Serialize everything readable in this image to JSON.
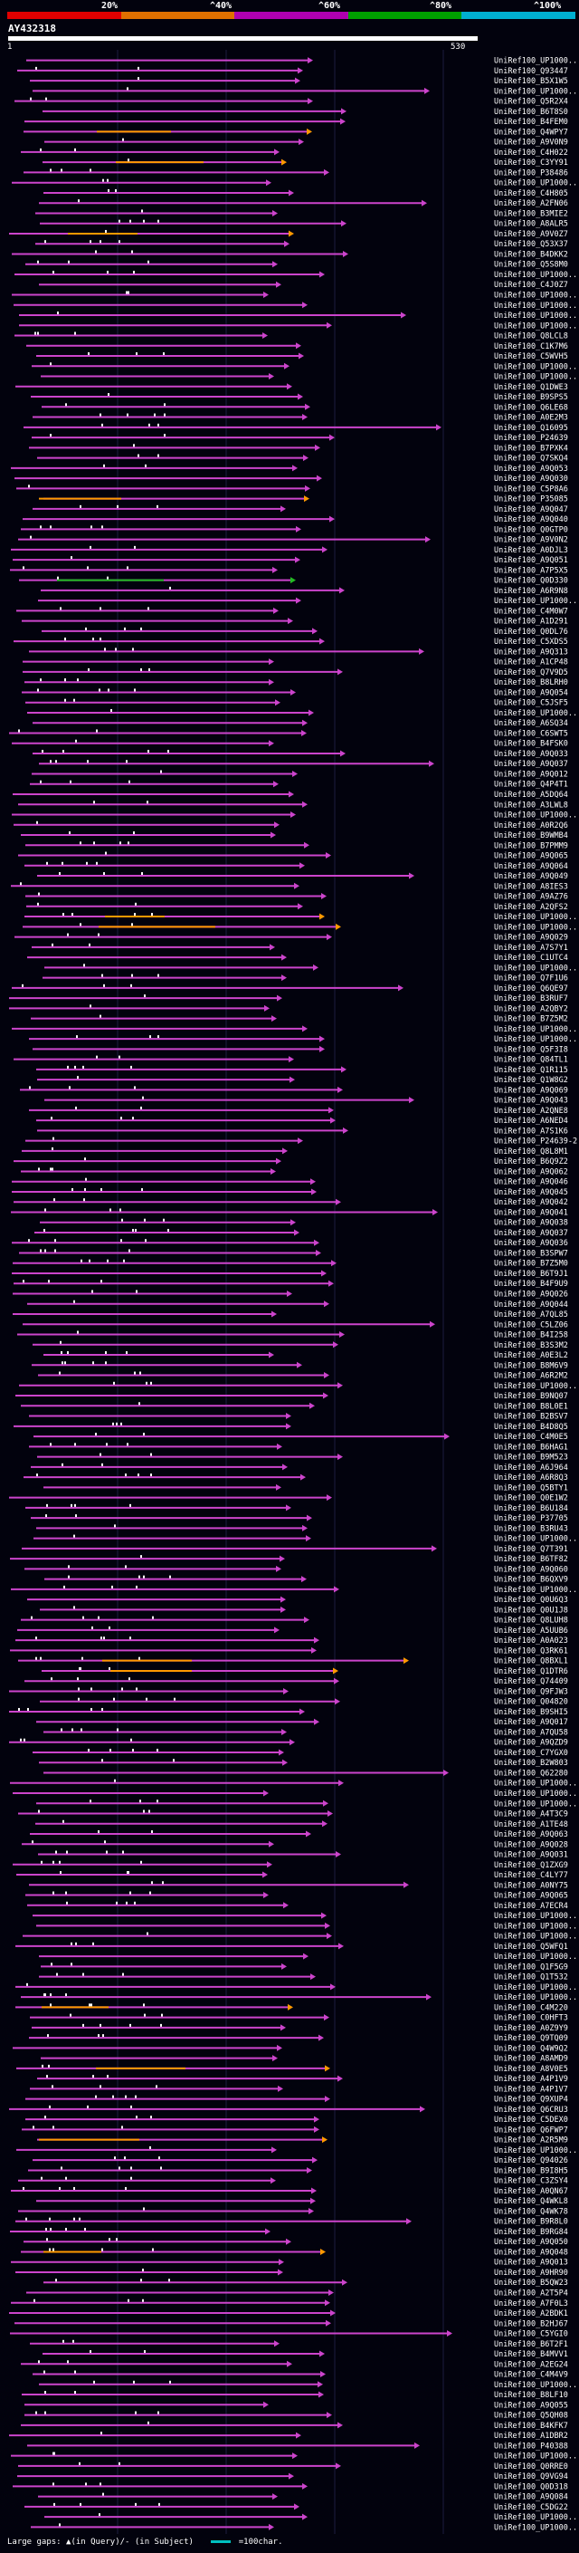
{
  "header": {
    "scale_labels": [
      "20%",
      "^40%",
      "^60%",
      "^80%",
      "^100%"
    ],
    "scale_colors": [
      "#e00000",
      "#e07000",
      "#b000b0",
      "#00a000",
      "#00b0d0"
    ],
    "query_id": "AY432318",
    "query_start": "1",
    "query_end": "530"
  },
  "legend": {
    "text": "Large gaps: ▲(in Query)/- (in Subject)",
    "scale_text": "=100char."
  },
  "colors": {
    "hit": "#cc44cc",
    "hit_orange": "#ff9900",
    "hit_green": "#22bb22",
    "label": "#ffffff",
    "background": "#02020d"
  },
  "hits": [
    "UniRef100_UP1000...",
    "UniRef100_Q93447",
    "UniRef100_B5X1W5",
    "UniRef100_UP1000...",
    "UniRef100_Q5R2X4",
    "UniRef100_B6T8S0",
    "UniRef100_B4FEM0",
    "UniRef100_Q4WPY7",
    "UniRef100_A9V0N9",
    "UniRef100_C4H022",
    "UniRef100_C3YY91",
    "UniRef100_P38486",
    "UniRef100_UP1000...",
    "UniRef100_C4H805",
    "UniRef100_A2FN06",
    "UniRef100_B3MIE2",
    "UniRef100_A8ALR5",
    "UniRef100_A9V0Z7",
    "UniRef100_Q53X37",
    "UniRef100_B4DKK2",
    "UniRef100_Q5S8M0",
    "UniRef100_UP1000...",
    "UniRef100_C4J0Z7",
    "UniRef100_UP1000...",
    "UniRef100_UP1000...",
    "UniRef100_UP1000...",
    "UniRef100_UP1000...",
    "UniRef100_Q8LCL8",
    "UniRef100_C1K7M6",
    "UniRef100_C5WVH5",
    "UniRef100_UP1000...",
    "UniRef100_UP1000...",
    "UniRef100_Q1DWE3",
    "UniRef100_B9SPS5",
    "UniRef100_Q6LE68",
    "UniRef100_A0E2M3",
    "UniRef100_Q16095",
    "UniRef100_P24639",
    "UniRef100_B7PXK4",
    "UniRef100_Q7SKQ4",
    "UniRef100_A9Q053",
    "UniRef100_A9Q030",
    "UniRef100_C5P8A6",
    "UniRef100_P35085",
    "UniRef100_A9Q047",
    "UniRef100_A9Q040",
    "UniRef100_Q0GTP0",
    "UniRef100_A9V0N2",
    "UniRef100_A0DJL3",
    "UniRef100_A9Q051",
    "UniRef100_A7P5X5",
    "UniRef100_Q0D330",
    "UniRef100_A6R9N8",
    "UniRef100_UP1000...",
    "UniRef100_C4M0W7",
    "UniRef100_A1D291",
    "UniRef100_Q0DL76",
    "UniRef100_C5XDS5",
    "UniRef100_A9Q313",
    "UniRef100_A1CP48",
    "UniRef100_Q7V9D5",
    "UniRef100_B8LRH0",
    "UniRef100_A9Q054",
    "UniRef100_C5JSF5",
    "UniRef100_UP1000...",
    "UniRef100_A6SQ34",
    "UniRef100_C6SWT5",
    "UniRef100_B4FSK0",
    "UniRef100_A9Q033",
    "UniRef100_A9Q037",
    "UniRef100_A9Q012",
    "UniRef100_Q4P4T1",
    "UniRef100_A5DQ64",
    "UniRef100_A3LWL8",
    "UniRef100_UP1000...",
    "UniRef100_A0R2Q6",
    "UniRef100_B9WMB4",
    "UniRef100_B7PMM9",
    "UniRef100_A9Q065",
    "UniRef100_A9Q064",
    "UniRef100_A9Q049",
    "UniRef100_A8IES3",
    "UniRef100_A9AZ76",
    "UniRef100_A2QFS2",
    "UniRef100_UP1000...",
    "UniRef100_UP1000...",
    "UniRef100_A9Q029",
    "UniRef100_A7S7Y1",
    "UniRef100_C1UTC4",
    "UniRef100_UP1000...",
    "UniRef100_Q7F1U6",
    "UniRef100_Q6QE97",
    "UniRef100_B3RUF7",
    "UniRef100_A2QBY2",
    "UniRef100_B7Z5M2",
    "UniRef100_UP1000...",
    "UniRef100_UP1000...",
    "UniRef100_Q5F3I8",
    "UniRef100_Q84TL1",
    "UniRef100_Q1R115",
    "UniRef100_Q1W8G2",
    "UniRef100_A9Q069",
    "UniRef100_A9Q043",
    "UniRef100_A2QNE8",
    "UniRef100_A6NED4",
    "UniRef100_A7S1K6",
    "UniRef100_P24639-2",
    "UniRef100_Q8L8M1",
    "UniRef100_B6Q9Z2",
    "UniRef100_A9Q062",
    "UniRef100_A9Q046",
    "UniRef100_A9Q045",
    "UniRef100_A9Q042",
    "UniRef100_A9Q041",
    "UniRef100_A9Q038",
    "UniRef100_A9Q037",
    "UniRef100_A9Q036",
    "UniRef100_B3SPW7",
    "UniRef100_B7Z5M0",
    "UniRef100_B6T9J1",
    "UniRef100_B4F9U9",
    "UniRef100_A9Q026",
    "UniRef100_A9Q044",
    "UniRef100_A7QL85",
    "UniRef100_C5LZ06",
    "UniRef100_B4I258",
    "UniRef100_B3S3M2",
    "UniRef100_A0E3L2",
    "UniRef100_B8M6V9",
    "UniRef100_A6R2M2",
    "UniRef100_UP1000...",
    "UniRef100_B9NQ07",
    "UniRef100_B8L0E1",
    "UniRef100_B2BSV7",
    "UniRef100_B4D8Q5",
    "UniRef100_C4M0E5",
    "UniRef100_B6HAG1",
    "UniRef100_B9M523",
    "UniRef100_A6J964",
    "UniRef100_A6R8Q3",
    "UniRef100_Q5BTY1",
    "UniRef100_Q0E1W2",
    "UniRef100_B6U184",
    "UniRef100_P37705",
    "UniRef100_B3RU43",
    "UniRef100_UP1000...",
    "UniRef100_Q7T391",
    "UniRef100_B6TF82",
    "UniRef100_A9Q060",
    "UniRef100_B6QXV9",
    "UniRef100_UP1000...",
    "UniRef100_Q0U6Q3",
    "UniRef100_Q0U1J8",
    "UniRef100_Q8LUH8",
    "UniRef100_A5UUB6",
    "UniRef100_A0A023",
    "UniRef100_Q3RK61",
    "UniRef100_Q8BXL1",
    "UniRef100_Q1DTR6",
    "UniRef100_Q74409",
    "UniRef100_Q9FJW3",
    "UniRef100_Q04820",
    "UniRef100_B9SHI5",
    "UniRef100_A9Q017",
    "UniRef100_A7QU58",
    "UniRef100_A9QZD9",
    "UniRef100_C7YGX0",
    "UniRef100_B2W803",
    "UniRef100_Q62280",
    "UniRef100_UP1000...",
    "UniRef100_UP1000...",
    "UniRef100_UP1000...",
    "UniRef100_A4T3C9",
    "UniRef100_A1TE48",
    "UniRef100_A9Q063",
    "UniRef100_A9Q028",
    "UniRef100_A9Q031",
    "UniRef100_Q1ZXG9",
    "UniRef100_C4LY77",
    "UniRef100_A0NY75",
    "UniRef100_A9Q065",
    "UniRef100_A7ECR4",
    "UniRef100_UP1000...",
    "UniRef100_UP1000...",
    "UniRef100_UP1000...",
    "UniRef100_Q5WFQ1",
    "UniRef100_UP1000...",
    "UniRef100_Q1F5G9",
    "UniRef100_Q1T532",
    "UniRef100_UP1000...",
    "UniRef100_UP1000...",
    "UniRef100_C4M220",
    "UniRef100_C0HFT3",
    "UniRef100_A0Z9Y9",
    "UniRef100_Q9TQ09",
    "UniRef100_Q4W9Q2",
    "UniRef100_A8AMD9",
    "UniRef100_A8V0E5",
    "UniRef100_A4P1V9",
    "UniRef100_A4P1V7",
    "UniRef100_Q9XUP4",
    "UniRef100_Q6CRU3",
    "UniRef100_C5DEX0",
    "UniRef100_Q6FWP7",
    "UniRef100_A2R5M9",
    "UniRef100_UP1000...",
    "UniRef100_Q94026",
    "UniRef100_B9I8H5",
    "UniRef100_C3ZSY4",
    "UniRef100_A0QN67",
    "UniRef100_Q4WKL8",
    "UniRef100_Q4WK78",
    "UniRef100_B9R8L0",
    "UniRef100_B9RG84",
    "UniRef100_A9Q050",
    "UniRef100_A9Q048",
    "UniRef100_A9Q013",
    "UniRef100_A9HR90",
    "UniRef100_B5QW23",
    "UniRef100_A2T5P4",
    "UniRef100_A7F0L3",
    "UniRef100_A2BDK1",
    "UniRef100_B2HJ67",
    "UniRef100_C5YGI0",
    "UniRef100_B6T2F1",
    "UniRef100_B4MVV1",
    "UniRef100_A2EG24",
    "UniRef100_C4M4V9",
    "UniRef100_UP1000...",
    "UniRef100_B8LF10",
    "UniRef100_A9Q055",
    "UniRef100_Q5QH08",
    "UniRef100_B4KFK7",
    "UniRef100_A1DBR2",
    "UniRef100_P40388",
    "UniRef100_UP1000...",
    "UniRef100_Q0RRE0",
    "UniRef100_Q9VG94",
    "UniRef100_Q0D318",
    "UniRef100_A9Q084",
    "UniRef100_C5DG22",
    "UniRef100_UP1000...",
    "UniRef100_UP1000..."
  ]
}
